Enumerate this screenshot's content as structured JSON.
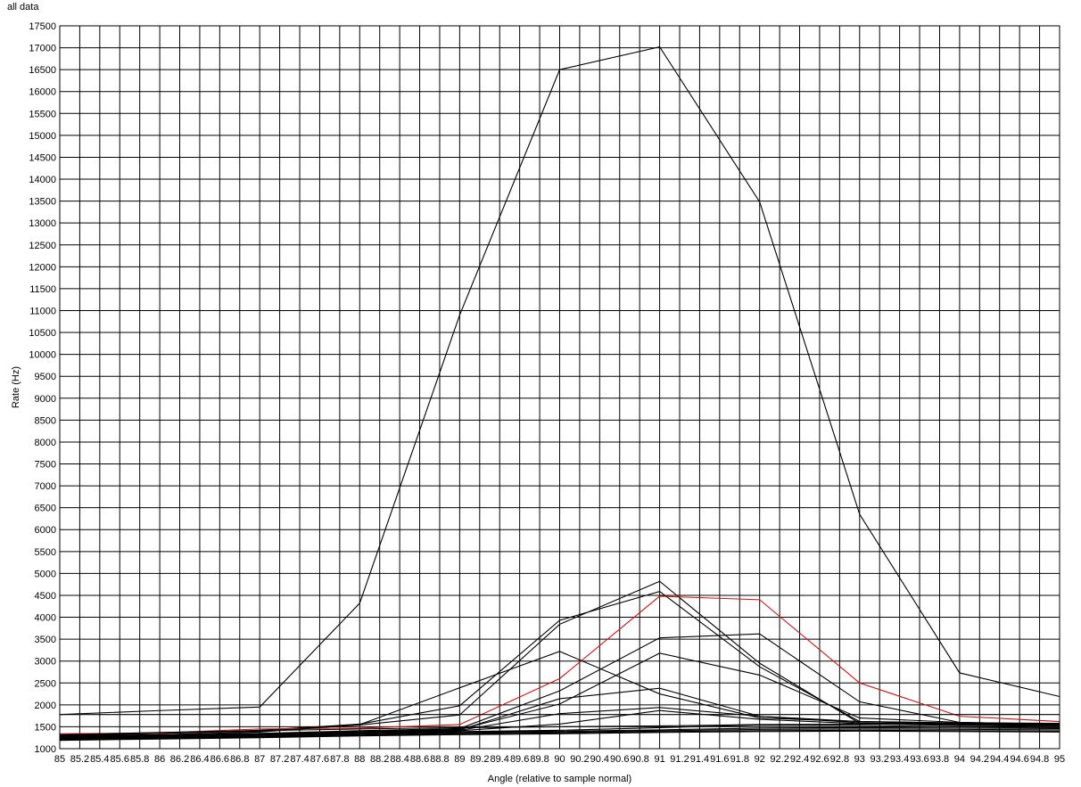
{
  "chart_data": {
    "type": "line",
    "title": "all data",
    "xlabel": "Angle (relative to sample normal)",
    "ylabel": "Rate (Hz)",
    "xlim": [
      85,
      95
    ],
    "ylim": [
      1000,
      17500
    ],
    "x_ticks": [
      "85",
      "85.2",
      "85.4",
      "85.6",
      "85.8",
      "86",
      "86.2",
      "86.4",
      "86.6",
      "86.8",
      "87",
      "87.2",
      "87.4",
      "87.6",
      "87.8",
      "88",
      "88.2",
      "88.4",
      "88.6",
      "88.8",
      "89",
      "89.2",
      "89.4",
      "89.6",
      "89.8",
      "90",
      "90.2",
      "90.4",
      "90.6",
      "90.8",
      "91",
      "91.2",
      "91.4",
      "91.6",
      "91.8",
      "92",
      "92.2",
      "92.4",
      "92.6",
      "92.8",
      "93",
      "93.2",
      "93.4",
      "93.6",
      "93.8",
      "94",
      "94.2",
      "94.4",
      "94.6",
      "94.8",
      "95"
    ],
    "y_ticks": [
      "1000",
      "1500",
      "2000",
      "2500",
      "3000",
      "3500",
      "4000",
      "4500",
      "5000",
      "5500",
      "6000",
      "6500",
      "7000",
      "7500",
      "8000",
      "8500",
      "9000",
      "9500",
      "10000",
      "10500",
      "11000",
      "11500",
      "12000",
      "12500",
      "13000",
      "13500",
      "14000",
      "14500",
      "15000",
      "15500",
      "16000",
      "16500",
      "17000",
      "17500"
    ],
    "grid": true,
    "legend": "none",
    "x": [
      85,
      86,
      87,
      88,
      89,
      90,
      91,
      92,
      93,
      94,
      95
    ],
    "series": [
      {
        "color": "#000000",
        "values": [
          1780,
          1870,
          1950,
          4320,
          10900,
          16500,
          17020,
          13480,
          6350,
          2730,
          2190
        ]
      },
      {
        "color": "#000000",
        "values": [
          1300,
          1350,
          1420,
          1560,
          1980,
          3930,
          4590,
          2870,
          1620,
          1580,
          1580
        ]
      },
      {
        "color": "#000000",
        "values": [
          1300,
          1350,
          1400,
          1540,
          1770,
          3840,
          4820,
          2950,
          1580,
          1560,
          1560
        ]
      },
      {
        "color": "#d01010",
        "values": [
          1340,
          1360,
          1450,
          1470,
          1550,
          2600,
          4480,
          4400,
          2500,
          1740,
          1620
        ]
      },
      {
        "color": "#000000",
        "values": [
          1290,
          1320,
          1380,
          1550,
          2390,
          3220,
          2250,
          1700,
          1620,
          1590,
          1580
        ]
      },
      {
        "color": "#000000",
        "values": [
          1280,
          1310,
          1350,
          1410,
          1460,
          2320,
          3530,
          3620,
          2070,
          1600,
          1560
        ]
      },
      {
        "color": "#000000",
        "values": [
          1270,
          1300,
          1340,
          1390,
          1440,
          2020,
          3180,
          2680,
          1700,
          1600,
          1560
        ]
      },
      {
        "color": "#000000",
        "values": [
          1260,
          1290,
          1330,
          1380,
          1430,
          2140,
          2380,
          1740,
          1620,
          1560,
          1540
        ]
      },
      {
        "color": "#000000",
        "values": [
          1250,
          1280,
          1320,
          1370,
          1420,
          1800,
          1940,
          1740,
          1590,
          1550,
          1530
        ]
      },
      {
        "color": "#000000",
        "values": [
          1240,
          1270,
          1310,
          1350,
          1410,
          1560,
          1870,
          1670,
          1570,
          1530,
          1510
        ]
      },
      {
        "color": "#000000",
        "values": [
          1230,
          1260,
          1290,
          1340,
          1390,
          1420,
          1480,
          1540,
          1530,
          1500,
          1480
        ]
      },
      {
        "color": "#000000",
        "values": [
          1220,
          1250,
          1280,
          1330,
          1380,
          1400,
          1430,
          1470,
          1480,
          1470,
          1460
        ]
      },
      {
        "color": "#000000",
        "values": [
          1210,
          1240,
          1270,
          1310,
          1360,
          1380,
          1410,
          1440,
          1450,
          1440,
          1430
        ]
      },
      {
        "color": "#000000",
        "values": [
          1200,
          1230,
          1260,
          1300,
          1340,
          1360,
          1390,
          1410,
          1420,
          1410,
          1400
        ]
      },
      {
        "color": "#000000",
        "values": [
          1190,
          1220,
          1250,
          1290,
          1320,
          1340,
          1370,
          1390,
          1400,
          1390,
          1380
        ]
      },
      {
        "color": "#000000",
        "values": [
          1320,
          1370,
          1410,
          1450,
          1480,
          1500,
          1520,
          1550,
          1560,
          1560,
          1550
        ]
      },
      {
        "color": "#000000",
        "values": [
          1780,
          1780,
          1780,
          1780,
          1780,
          1780,
          1780,
          1780,
          1780,
          1780,
          1780
        ]
      }
    ]
  }
}
